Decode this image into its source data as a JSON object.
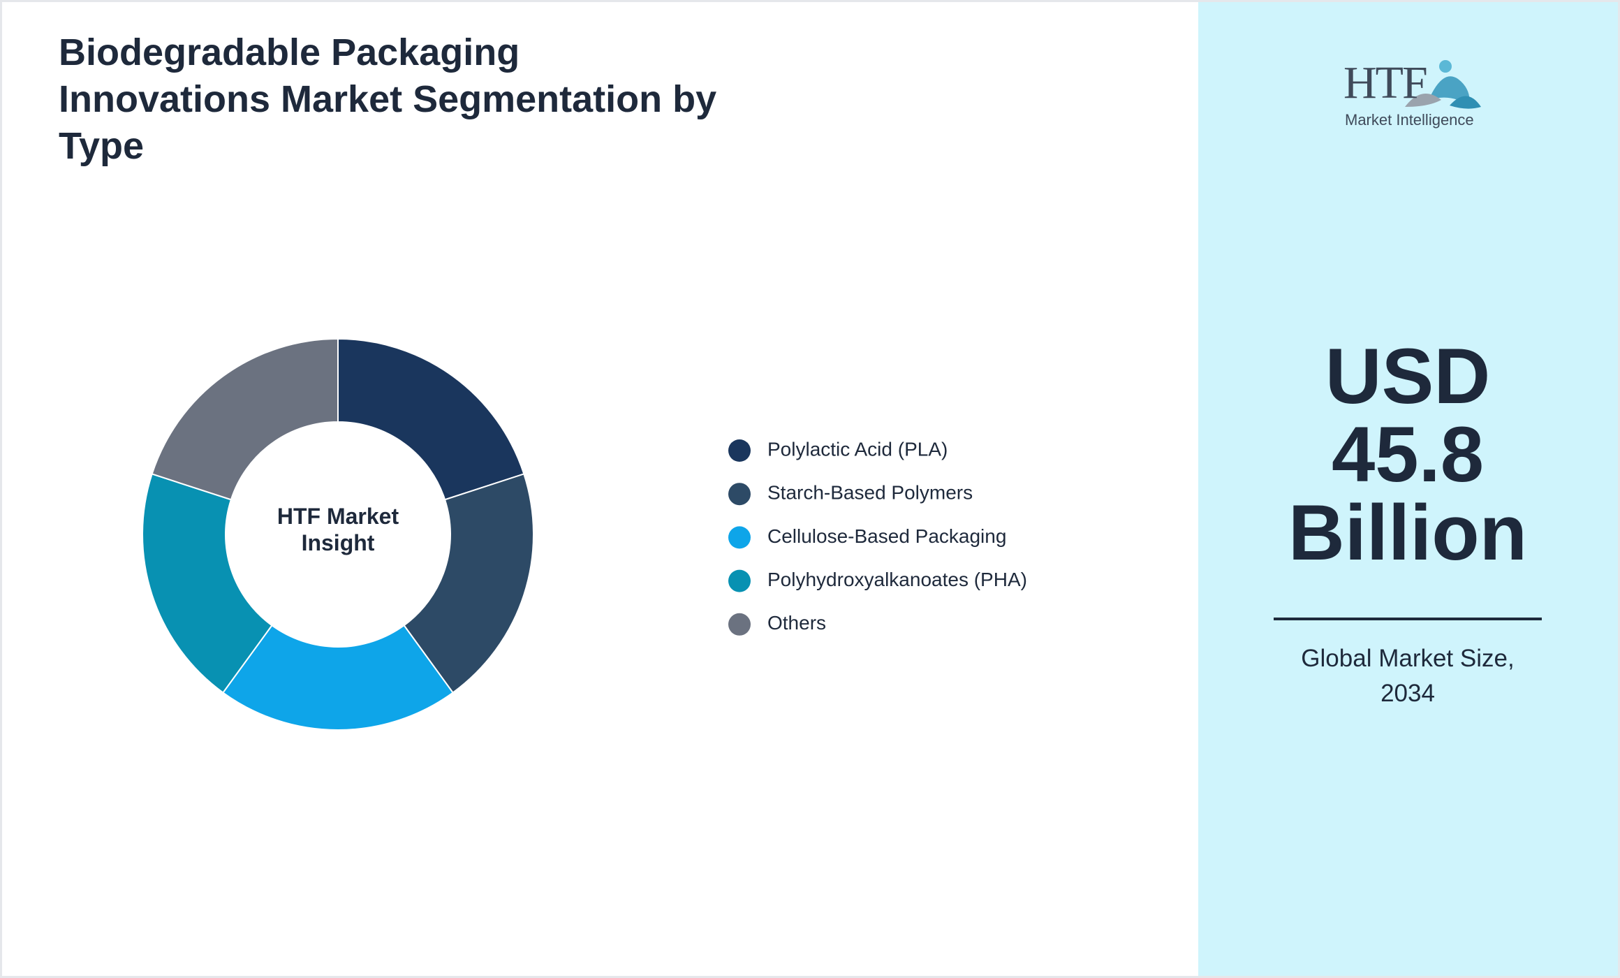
{
  "chart_data": {
    "type": "donut",
    "title": "Biodegradable Packaging Innovations Market Segmentation by Type",
    "center_label": "HTF Market Insight",
    "categories": [
      "Polylactic Acid (PLA)",
      "Starch-Based Polymers",
      "Cellulose-Based Packaging",
      "Polyhydroxyalkanoates (PHA)",
      "Others"
    ],
    "values": [
      20,
      20,
      20,
      20,
      20
    ],
    "colors": [
      "#1a365d",
      "#2d4a66",
      "#0ea5e9",
      "#0891b2",
      "#6b7280"
    ]
  },
  "side_panel": {
    "logo_title": "HTF",
    "logo_subtitle": "Market Intelligence",
    "headline": "USD 45.8 Billion",
    "caption": "Global Market Size, 2034"
  }
}
